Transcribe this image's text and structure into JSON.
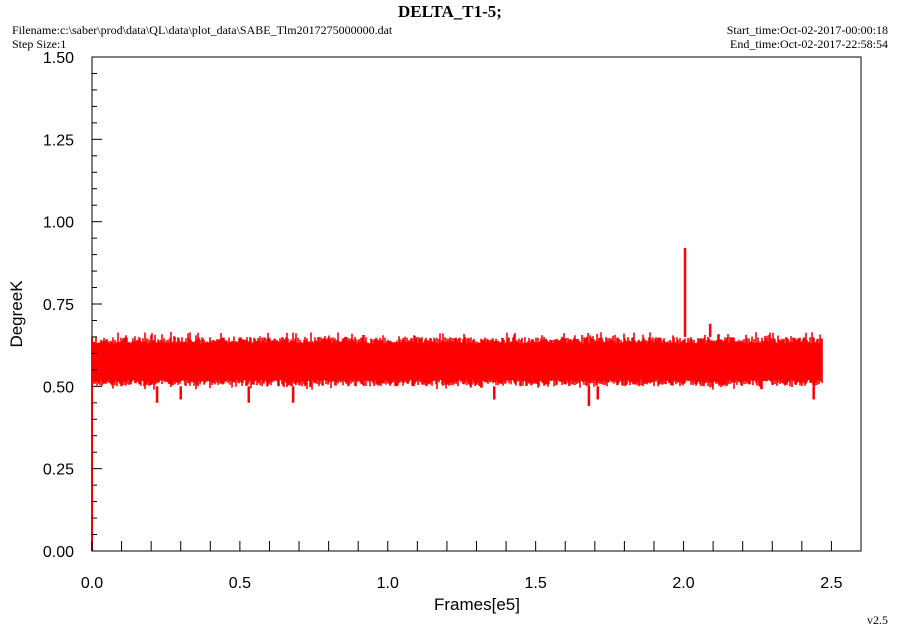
{
  "header": {
    "title": "DELTA_T1-5;",
    "filename": "Filename:c:\\saber\\prod\\data\\QL\\data\\plot_data\\SABE_Tlm2017275000000.dat",
    "step_size": "Step Size:1",
    "start_time": "Start_time:Oct-02-2017-00:00:18",
    "end_time": "End_time:Oct-02-2017-22:58:54"
  },
  "footer": {
    "version": "v2.5"
  },
  "colors": {
    "series": "#ff0000",
    "axis": "#000000",
    "background": "#ffffff"
  },
  "chart_data": {
    "type": "line",
    "title": "DELTA_T1-5;",
    "xlabel": "Frames[e5]",
    "ylabel": "DegreeK",
    "xlim": [
      0,
      2.6
    ],
    "ylim": [
      0,
      1.5
    ],
    "x_ticks": [
      "0.0",
      "0.5",
      "1.0",
      "1.5",
      "2.0",
      "2.5"
    ],
    "y_ticks": [
      "0.00",
      "0.25",
      "0.50",
      "0.75",
      "1.00",
      "1.25",
      "1.50"
    ],
    "grid": false,
    "legend": "none",
    "series": [
      {
        "color": "#ff0000",
        "band_low": 0.5,
        "band_high": 0.65,
        "x_range": [
          0,
          2.47
        ],
        "x": [
          0.0,
          0.0,
          0.005,
          0.01,
          0.05,
          0.1,
          0.15,
          0.2,
          0.25,
          0.3,
          0.35,
          0.4,
          0.45,
          0.5,
          0.55,
          0.6,
          0.65,
          0.7,
          0.75,
          0.8,
          0.85,
          0.9,
          0.95,
          1.0,
          1.05,
          1.1,
          1.15,
          1.2,
          1.25,
          1.3,
          1.35,
          1.4,
          1.45,
          1.5,
          1.55,
          1.6,
          1.65,
          1.7,
          1.75,
          1.8,
          1.85,
          1.9,
          1.95,
          2.0,
          2.005,
          2.01,
          2.05,
          2.1,
          2.15,
          2.2,
          2.25,
          2.3,
          2.35,
          2.4,
          2.45,
          2.47
        ],
        "y": [
          0.0,
          0.65,
          0.5,
          0.6,
          0.58,
          0.57,
          0.6,
          0.55,
          0.58,
          0.6,
          0.57,
          0.59,
          0.58,
          0.6,
          0.57,
          0.58,
          0.6,
          0.56,
          0.59,
          0.58,
          0.6,
          0.57,
          0.59,
          0.58,
          0.6,
          0.57,
          0.58,
          0.6,
          0.57,
          0.59,
          0.58,
          0.6,
          0.57,
          0.58,
          0.6,
          0.57,
          0.59,
          0.58,
          0.6,
          0.57,
          0.58,
          0.6,
          0.57,
          0.92,
          0.58,
          0.6,
          0.57,
          0.59,
          0.58,
          0.6,
          0.57,
          0.58,
          0.6,
          0.57,
          0.59,
          0.58
        ],
        "spikes_high": [
          {
            "x": 2.005,
            "y": 0.92
          },
          {
            "x": 2.09,
            "y": 0.69
          }
        ],
        "spikes_low": [
          {
            "x": 0.22,
            "y": 0.45
          },
          {
            "x": 0.3,
            "y": 0.46
          },
          {
            "x": 0.53,
            "y": 0.45
          },
          {
            "x": 0.68,
            "y": 0.45
          },
          {
            "x": 1.36,
            "y": 0.46
          },
          {
            "x": 1.68,
            "y": 0.44
          },
          {
            "x": 1.71,
            "y": 0.46
          },
          {
            "x": 2.44,
            "y": 0.46
          }
        ]
      }
    ]
  }
}
